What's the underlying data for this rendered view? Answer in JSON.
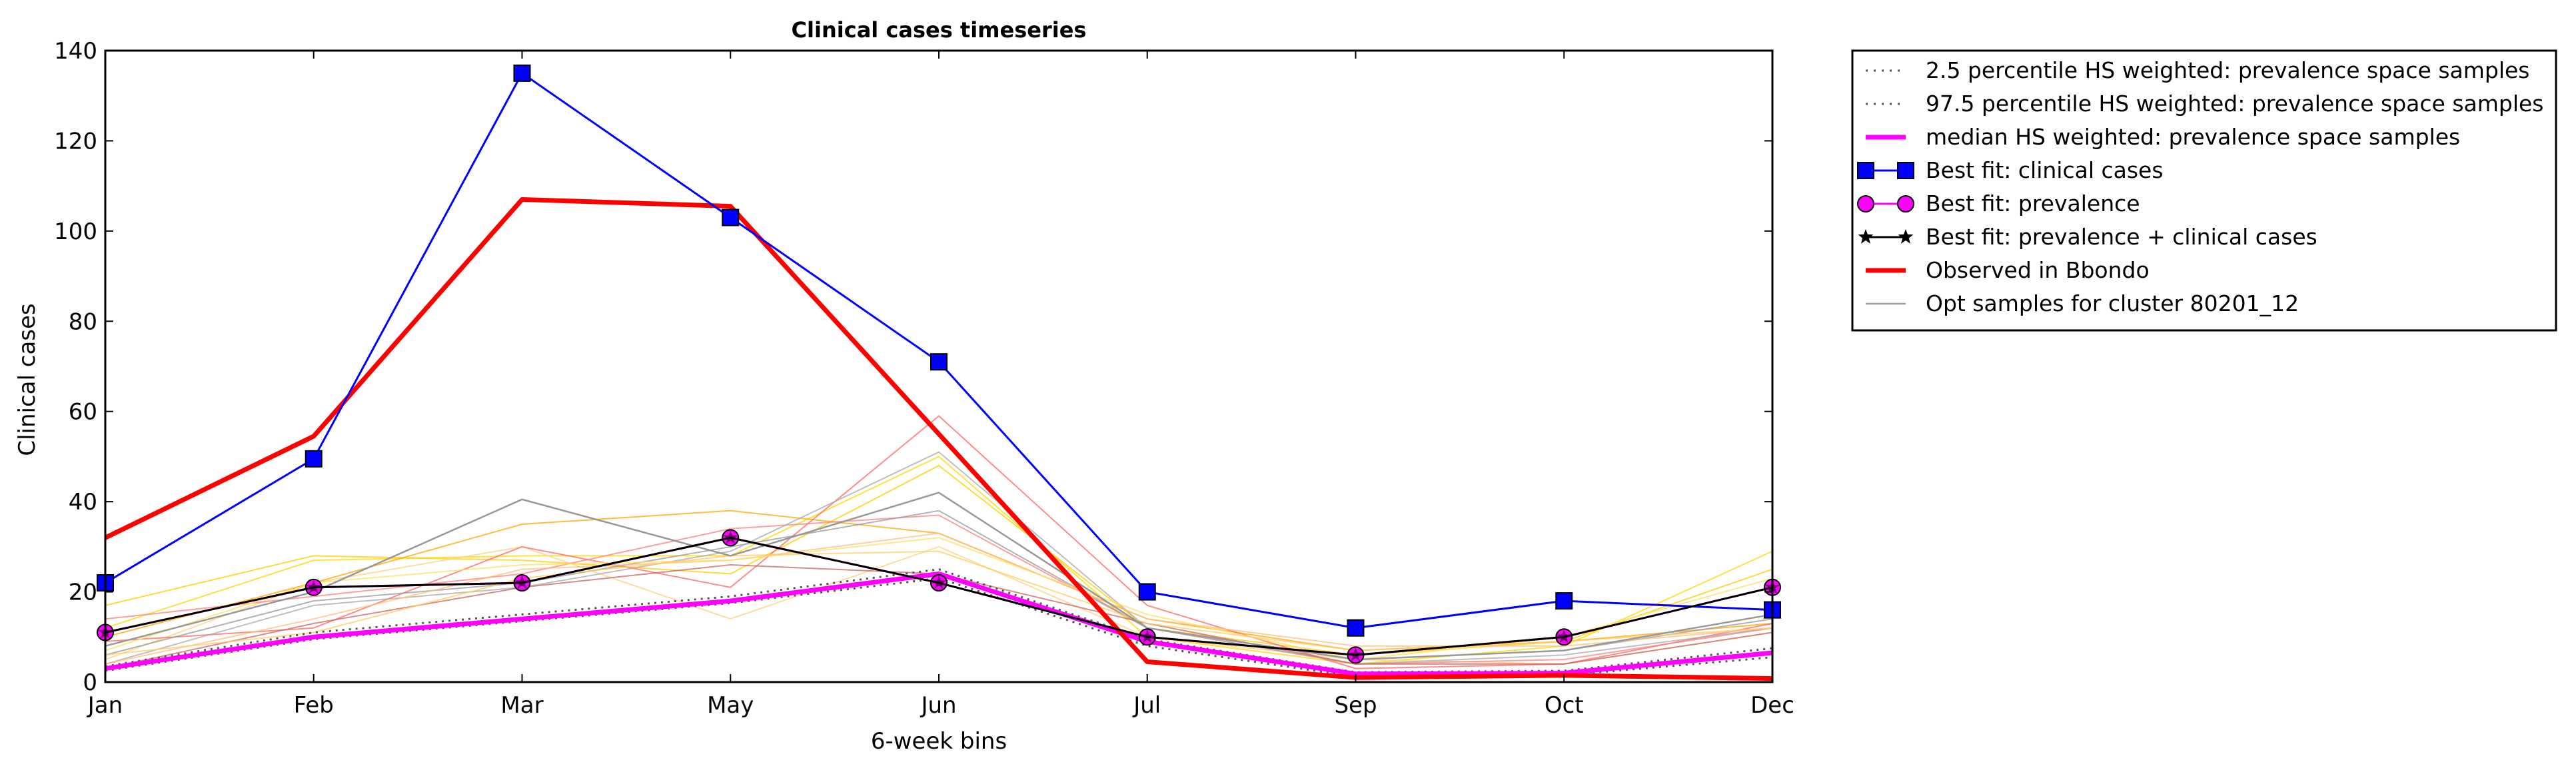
{
  "chart_data": {
    "type": "line",
    "title": "Clinical cases timeseries",
    "xlabel": "6-week bins",
    "ylabel": "Clinical cases",
    "categories": [
      "Jan",
      "Feb",
      "Mar",
      "May",
      "Jun",
      "Jul",
      "Sep",
      "Oct",
      "Dec"
    ],
    "ylim": [
      0,
      140
    ],
    "yticks": [
      0,
      20,
      40,
      60,
      80,
      100,
      120,
      140
    ],
    "grid": false,
    "legend_position": "outside-right",
    "series": [
      {
        "name": "2.5 percentile HS weighted: prevalence space samples",
        "style": "dotted",
        "color": "#555555",
        "values": [
          2.5,
          9.5,
          13.5,
          17.5,
          23,
          8,
          1.2,
          1.5,
          5.5
        ]
      },
      {
        "name": "97.5 percentile HS weighted: prevalence space samples",
        "style": "dotted",
        "color": "#555555",
        "values": [
          3.5,
          11,
          15,
          19,
          25,
          9.5,
          2.2,
          2.5,
          7.5
        ]
      },
      {
        "name": "median HS weighted: prevalence space samples",
        "style": "solid",
        "color": "#ff00ff",
        "values": [
          3,
          10,
          14,
          18,
          24,
          9,
          1.8,
          2,
          6.5
        ]
      },
      {
        "name": "Best fit: clinical cases",
        "style": "marker-square",
        "color": "#0000ff",
        "values": [
          22,
          49.5,
          135,
          103,
          71,
          20,
          12,
          18,
          16
        ]
      },
      {
        "name": "Best fit: prevalence",
        "style": "marker-circle",
        "color": "#ff00ff",
        "values": [
          11,
          21,
          22,
          32,
          22,
          10,
          6,
          10,
          21
        ]
      },
      {
        "name": "Best fit: prevalence + clinical cases",
        "style": "marker-star",
        "color": "#000000",
        "values": [
          11,
          21,
          22,
          32,
          22,
          10,
          6,
          10,
          21
        ]
      },
      {
        "name": "Observed in Bbondo",
        "style": "thick",
        "color": "#ff0000",
        "values": [
          32,
          54.5,
          107,
          105.5,
          55,
          4.5,
          1,
          1.5,
          0.8
        ]
      },
      {
        "name": "Opt samples for cluster 80201_12",
        "style": "thin",
        "color": "#999999",
        "values": [
          8,
          20,
          40.5,
          28,
          42,
          12,
          5,
          7,
          15
        ]
      }
    ],
    "samples": [
      {
        "color": "#ffd700",
        "values": [
          12,
          27,
          28,
          28,
          50,
          10,
          4,
          8,
          29
        ]
      },
      {
        "color": "#ffcc00",
        "values": [
          17,
          28,
          27,
          24,
          48,
          12,
          6,
          9,
          25
        ]
      },
      {
        "color": "#ffa500",
        "values": [
          10,
          22,
          35,
          38,
          33,
          14,
          7,
          9,
          13
        ]
      },
      {
        "color": "#ffd27f",
        "values": [
          5,
          22,
          30,
          14,
          30,
          10,
          5,
          4,
          11
        ]
      },
      {
        "color": "#ff6666",
        "values": [
          9,
          12,
          30,
          21,
          59,
          17,
          3,
          4,
          13
        ]
      },
      {
        "color": "#ff8080",
        "values": [
          14,
          19,
          24,
          34,
          37,
          12,
          4,
          5,
          12
        ]
      },
      {
        "color": "#999999",
        "values": [
          6,
          18,
          22,
          30,
          38,
          12,
          5,
          7,
          14
        ]
      },
      {
        "color": "#aaaaaa",
        "values": [
          4,
          17,
          21,
          29,
          51,
          12,
          4,
          6,
          12
        ]
      },
      {
        "color": "#ffbf80",
        "values": [
          4,
          14,
          25,
          27,
          33,
          14,
          8,
          8,
          12
        ]
      },
      {
        "color": "#ffe066",
        "values": [
          7,
          22,
          26,
          27,
          32,
          15,
          5,
          10,
          23
        ]
      },
      {
        "color": "#cc6666",
        "values": [
          3,
          13,
          21,
          26,
          24,
          13,
          4,
          4,
          11
        ]
      },
      {
        "color": "#ffcc66",
        "values": [
          6,
          11,
          23,
          28,
          29,
          13,
          7,
          9,
          12
        ]
      }
    ]
  }
}
